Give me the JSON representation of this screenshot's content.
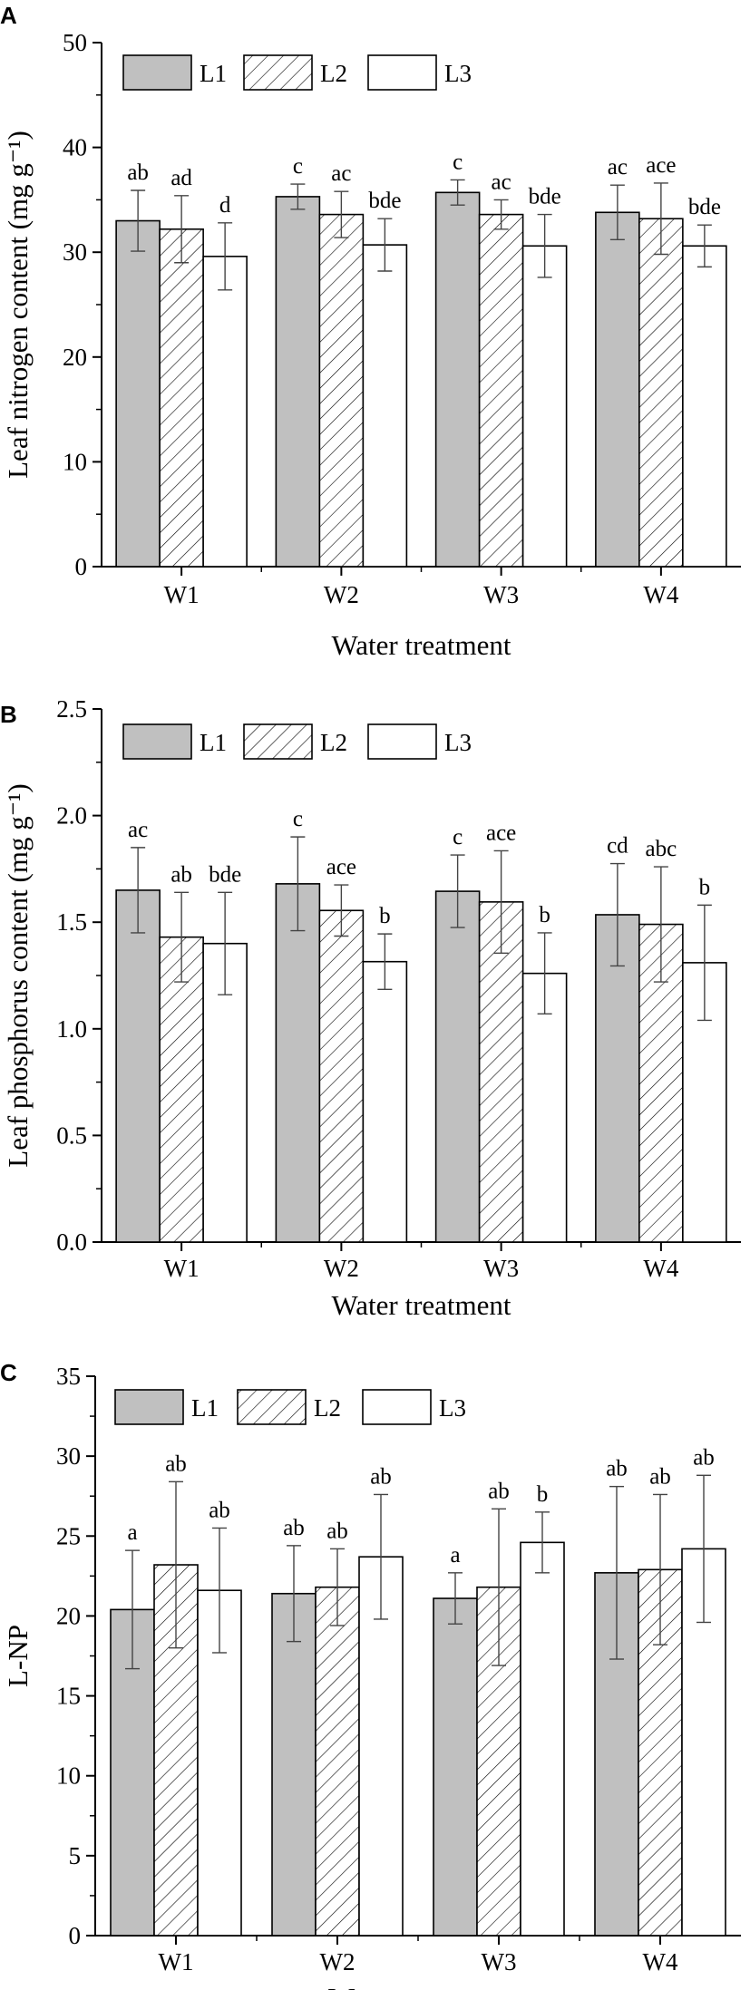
{
  "chart_data": [
    {
      "type": "bar",
      "panel": "A",
      "categories": [
        "W1",
        "W2",
        "W3",
        "W4"
      ],
      "xlabel": "Water treatment",
      "ylabel": "Leaf nitrogen content (mg g⁻¹)",
      "ylim": [
        0,
        50
      ],
      "yticks": [
        "0",
        "10",
        "20",
        "30",
        "40",
        "50"
      ],
      "legend": [
        "L1",
        "L2",
        "L3"
      ],
      "series": [
        {
          "name": "L1",
          "values": [
            33.0,
            35.3,
            35.7,
            33.8
          ],
          "err": [
            2.9,
            1.2,
            1.2,
            2.6
          ],
          "letters": [
            "ab",
            "c",
            "c",
            "ac"
          ]
        },
        {
          "name": "L2",
          "values": [
            32.2,
            33.6,
            33.6,
            33.2
          ],
          "err": [
            3.2,
            2.2,
            1.4,
            3.4
          ],
          "letters": [
            "ad",
            "ac",
            "ac",
            "ace"
          ]
        },
        {
          "name": "L3",
          "values": [
            29.6,
            30.7,
            30.6,
            30.6
          ],
          "err": [
            3.2,
            2.5,
            3.0,
            2.0
          ],
          "letters": [
            "d",
            "bde",
            "bde",
            "bde"
          ]
        }
      ]
    },
    {
      "type": "bar",
      "panel": "B",
      "categories": [
        "W1",
        "W2",
        "W3",
        "W4"
      ],
      "xlabel": "Water treatment",
      "ylabel": "Leaf phosphorus content (mg g⁻¹)",
      "ylim": [
        0,
        2.5
      ],
      "yticks": [
        "0.0",
        "0.5",
        "1.0",
        "1.5",
        "2.0",
        "2.5"
      ],
      "legend": [
        "L1",
        "L2",
        "L3"
      ],
      "series": [
        {
          "name": "L1",
          "values": [
            1.65,
            1.68,
            1.645,
            1.535
          ],
          "err": [
            0.2,
            0.22,
            0.17,
            0.24
          ],
          "letters": [
            "ac",
            "c",
            "c",
            "cd"
          ]
        },
        {
          "name": "L2",
          "values": [
            1.43,
            1.555,
            1.595,
            1.49
          ],
          "err": [
            0.21,
            0.12,
            0.24,
            0.27
          ],
          "letters": [
            "ab",
            "ace",
            "ace",
            "abc"
          ]
        },
        {
          "name": "L3",
          "values": [
            1.4,
            1.315,
            1.26,
            1.31
          ],
          "err": [
            0.24,
            0.13,
            0.19,
            0.27
          ],
          "letters": [
            "bde",
            "b",
            "b",
            "b"
          ]
        }
      ]
    },
    {
      "type": "bar",
      "panel": "C",
      "categories": [
        "W1",
        "W2",
        "W3",
        "W4"
      ],
      "xlabel": "Water treatment",
      "ylabel": "L-NP",
      "ylim": [
        0,
        35
      ],
      "yticks": [
        "0",
        "5",
        "10",
        "15",
        "20",
        "25",
        "30",
        "35"
      ],
      "legend": [
        "L1",
        "L2",
        "L3"
      ],
      "series": [
        {
          "name": "L1",
          "values": [
            20.4,
            21.4,
            21.1,
            22.7
          ],
          "err": [
            3.7,
            3.0,
            1.6,
            5.4
          ],
          "letters": [
            "a",
            "ab",
            "a",
            "ab"
          ]
        },
        {
          "name": "L2",
          "values": [
            23.2,
            21.8,
            21.8,
            22.9
          ],
          "err": [
            5.2,
            2.4,
            4.9,
            4.7
          ],
          "letters": [
            "ab",
            "ab",
            "ab",
            "ab"
          ]
        },
        {
          "name": "L3",
          "values": [
            21.6,
            23.7,
            24.6,
            24.2
          ],
          "err": [
            3.9,
            3.9,
            1.9,
            4.6
          ],
          "letters": [
            "ab",
            "ab",
            "b",
            "ab"
          ]
        }
      ]
    }
  ]
}
